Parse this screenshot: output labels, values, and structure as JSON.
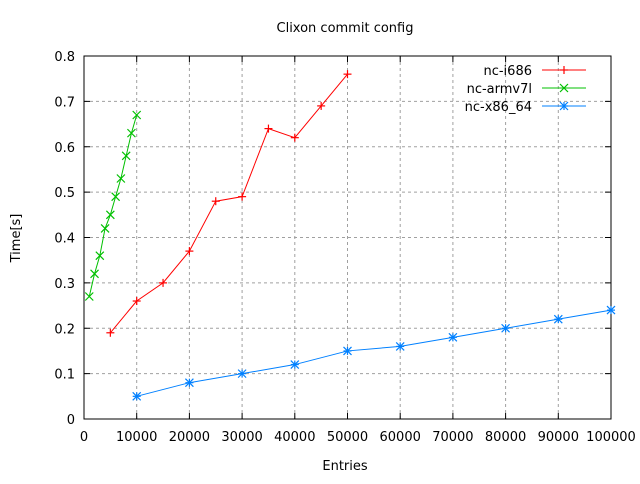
{
  "chart_data": {
    "type": "line",
    "title": "Clixon commit config",
    "xlabel": "Entries",
    "ylabel": "Time[s]",
    "xlim": [
      0,
      100000
    ],
    "ylim": [
      0,
      0.8
    ],
    "xticks": [
      0,
      10000,
      20000,
      30000,
      40000,
      50000,
      60000,
      70000,
      80000,
      90000,
      100000
    ],
    "yticks": [
      0,
      0.1,
      0.2,
      0.3,
      0.4,
      0.5,
      0.6,
      0.7,
      0.8
    ],
    "grid": true,
    "legend_position": "top-right",
    "series": [
      {
        "name": "nc-i686",
        "color": "#ff0000",
        "marker": "plus",
        "x": [
          5000,
          10000,
          15000,
          20000,
          25000,
          30000,
          35000,
          40000,
          45000,
          50000
        ],
        "y": [
          0.19,
          0.26,
          0.3,
          0.37,
          0.48,
          0.49,
          0.64,
          0.62,
          0.69,
          0.76
        ]
      },
      {
        "name": "nc-armv7l",
        "color": "#00c000",
        "marker": "cross",
        "x": [
          1000,
          2000,
          3000,
          4000,
          5000,
          6000,
          7000,
          8000,
          9000,
          10000
        ],
        "y": [
          0.27,
          0.32,
          0.36,
          0.42,
          0.45,
          0.49,
          0.53,
          0.58,
          0.63,
          0.67
        ]
      },
      {
        "name": "nc-x86_64",
        "color": "#0080ff",
        "marker": "star",
        "x": [
          10000,
          20000,
          30000,
          40000,
          50000,
          60000,
          70000,
          80000,
          90000,
          100000
        ],
        "y": [
          0.05,
          0.08,
          0.1,
          0.12,
          0.15,
          0.16,
          0.18,
          0.2,
          0.22,
          0.24
        ]
      }
    ]
  }
}
